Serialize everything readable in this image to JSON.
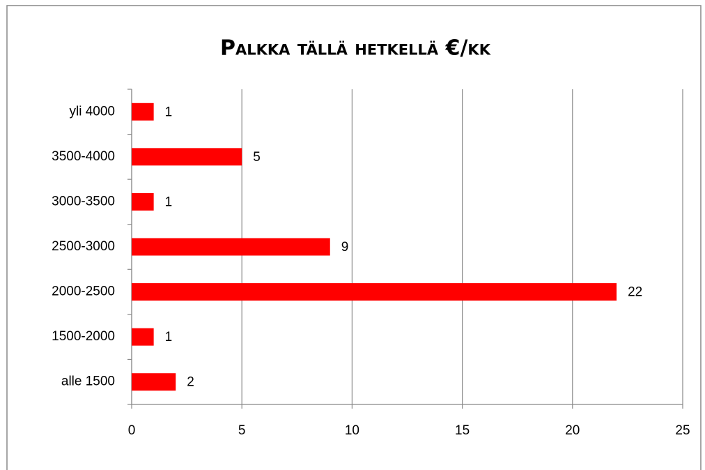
{
  "chart_data": {
    "type": "barh",
    "title": "Palkka tällä hetkellä €/kk",
    "categories": [
      "alle 1500",
      "1500-2000",
      "2000-2500",
      "2500-3000",
      "3000-3500",
      "3500-4000",
      "yli 4000"
    ],
    "values": [
      2,
      1,
      22,
      9,
      1,
      5,
      1
    ],
    "color": "#ff0000",
    "xlim": [
      0,
      25
    ],
    "xticks": [
      0,
      5,
      10,
      15,
      20,
      25
    ],
    "grid": true
  }
}
